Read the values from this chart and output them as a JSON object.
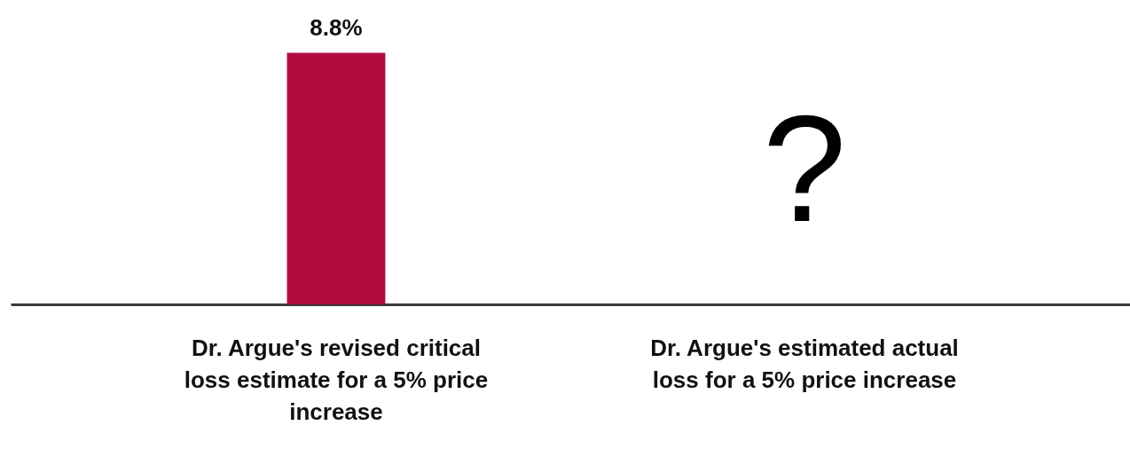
{
  "chart_data": {
    "type": "bar",
    "categories": [
      "Dr. Argue's revised critical loss estimate for a 5% price increase",
      "Dr. Argue's estimated actual loss for a 5% price increase"
    ],
    "values": [
      8.8,
      null
    ],
    "value_labels": [
      "8.8%",
      null
    ],
    "color": "#b10c40",
    "annotations": [
      "?"
    ]
  }
}
